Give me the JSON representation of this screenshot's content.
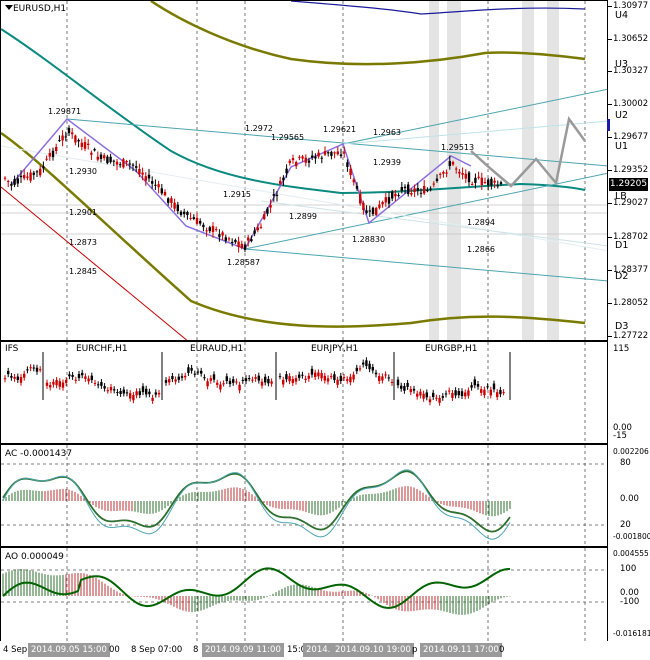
{
  "main": {
    "title": "EURUSD,H1",
    "price_scale": [
      "1.30977",
      "1.30652",
      "1.30327",
      "1.30002",
      "1.29677",
      "1.29352",
      "1.29027",
      "1.28702",
      "1.28377",
      "1.28052",
      "1.27722"
    ],
    "current_price": "1.29205",
    "levels": [
      "U4",
      "U3",
      "U2",
      "U1",
      "LB",
      "D1",
      "D2",
      "D3"
    ],
    "price_labels": [
      "1.29871",
      "1.2930",
      "1.2901",
      "1.2873",
      "1.2845",
      "1.2972",
      "1.29565",
      "1.29621",
      "1.2963",
      "1.2939",
      "1.2915",
      "1.2899",
      "1.28587",
      "1.28830",
      "1.29513",
      "1.2894",
      "1.2866"
    ]
  },
  "subpanel": {
    "title": "IFS",
    "symbols": [
      "EURCHF,H1",
      "EURAUD,H1",
      "EURJPY,H1",
      "EURGBP,H1"
    ],
    "scale": [
      "115",
      "0.00",
      "-15"
    ]
  },
  "ac": {
    "title": "AC -0.0001437",
    "scale": [
      "0.002206",
      "80",
      "0.00",
      "20",
      "-0.001800"
    ]
  },
  "ao": {
    "title": "AO 0.000049",
    "scale": [
      "0.004555",
      "100",
      "0.00",
      "-100",
      "-0.016181"
    ]
  },
  "time_axis": [
    "4 Sep",
    "2014.09.05 15:00",
    "00",
    "8 Sep 07:00",
    "8",
    "2014.09.09 11:00",
    "15:0",
    "2014.",
    "2014.09.10 19:00",
    "p",
    "2014.09.11 17:00",
    "0"
  ],
  "colors": {
    "grid": "#555555",
    "bull": "#000000",
    "bear": "#cc0000",
    "teal": "#0a8a80",
    "olive": "#7a7a00",
    "channel": "#4aa5b0",
    "zigzag": "#8c6ee0",
    "ao_line": "#006400",
    "ac_line": "#2d6f2d",
    "highlight": "#9a9a9a"
  }
}
